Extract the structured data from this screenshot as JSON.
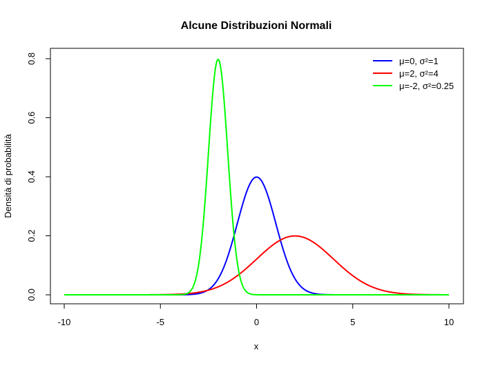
{
  "chart_data": {
    "type": "line",
    "title": "Alcune Distribuzioni Normali",
    "xlabel": "x",
    "ylabel": "Densità di probabilità",
    "xlim": [
      -10,
      10
    ],
    "ylim": [
      0,
      0.8
    ],
    "x_ticks": [
      "-10",
      "-5",
      "0",
      "5",
      "10"
    ],
    "y_ticks": [
      "0.0",
      "0.2",
      "0.4",
      "0.6",
      "0.8"
    ],
    "grid": false,
    "legend_position": "top-right",
    "series": [
      {
        "name": "μ=0, σ²=1",
        "mean": 0,
        "variance": 1,
        "color": "#0000ff"
      },
      {
        "name": "μ=2, σ²=4",
        "mean": 2,
        "variance": 4,
        "color": "#ff0000"
      },
      {
        "name": "μ=-2, σ²=0.25",
        "mean": -2,
        "variance": 0.25,
        "color": "#00ff00"
      }
    ]
  }
}
